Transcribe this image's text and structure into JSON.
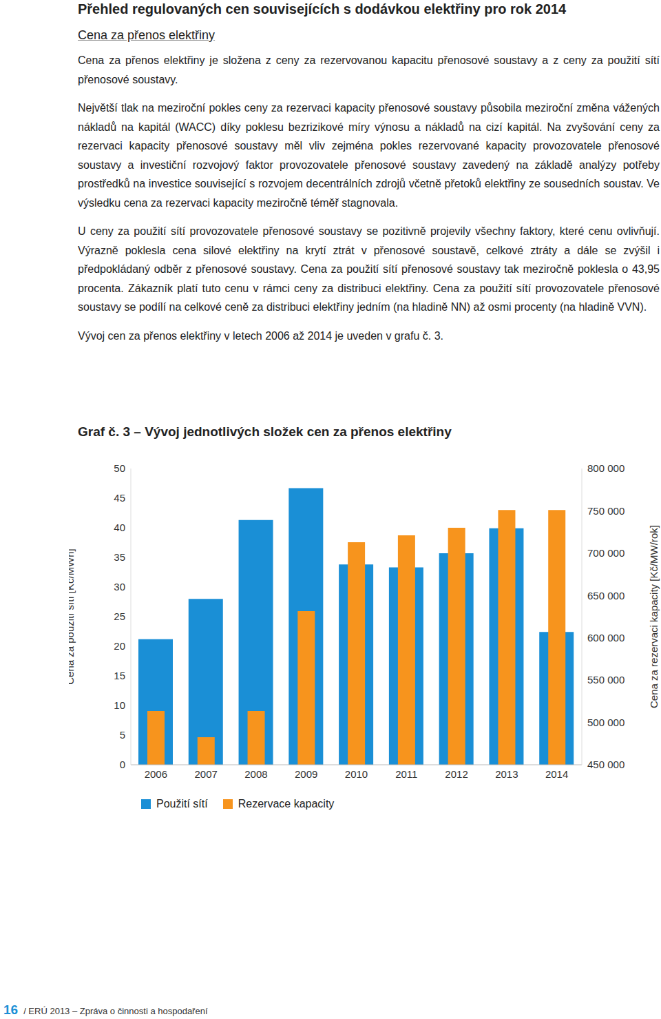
{
  "header": {
    "title": "Přehled regulovaných cen souvisejících s dodávkou elektřiny pro rok 2014",
    "subtitle": "Cena za přenos elektřiny"
  },
  "paragraphs": [
    "Cena za přenos elektřiny je složena z ceny za rezervovanou kapacitu přenosové soustavy a z ceny za použití sítí přenosové soustavy.",
    "Největší tlak na meziroční pokles ceny za rezervaci kapacity přenosové soustavy působila meziroční změna vážených nákladů na kapitál (WACC) díky poklesu bezrizikové míry výnosu a nákladů na cizí kapitál. Na zvyšování ceny za rezervaci kapacity přenosové soustavy měl vliv zejména pokles rezervované kapacity provozovatele přenosové soustavy a investiční rozvojový faktor provozovatele přenosové soustavy zavedený na základě analýzy potřeby prostředků na investice související s rozvojem decentrálních zdrojů včetně přetoků elektřiny ze sousedních soustav. Ve výsledku cena za rezervaci kapacity meziročně téměř stagnovala.",
    "U ceny za použití sítí provozovatele přenosové soustavy se pozitivně projevily všechny faktory, které cenu ovlivňují. Výrazně poklesla cena silové elektřiny na krytí ztrát v přenosové soustavě, celkové ztráty a dále se zvýšil i předpokládaný odběr z přenosové soustavy. Cena za použití sítí přenosové soustavy tak meziročně poklesla o 43,95 procenta. Zákazník platí tuto cenu v rámci ceny za distribuci elektřiny. Cena za použití sítí provozovatele přenosové soustavy se podílí na celkové ceně za distribuci elektřiny jedním (na hladině NN) až osmi procenty (na hladině VVN).",
    "Vývoj cen za přenos elektřiny v letech 2006 až 2014 je uveden v grafu č. 3."
  ],
  "chart_data": {
    "type": "bar",
    "title": "Graf č. 3 – Vývoj jednotlivých složek cen za přenos elektřiny",
    "categories": [
      "2006",
      "2007",
      "2008",
      "2009",
      "2010",
      "2011",
      "2012",
      "2013",
      "2014"
    ],
    "series": [
      {
        "name": "Použití sítí",
        "color": "#1a8fd6",
        "values": [
          21.2,
          28.0,
          41.3,
          46.7,
          33.8,
          33.3,
          35.7,
          39.9,
          22.4
        ]
      },
      {
        "name": "Rezervace kapacity",
        "color": "#f7941d",
        "axis": "y2",
        "values": [
          513500,
          482600,
          513500,
          631500,
          713000,
          721000,
          730000,
          751000,
          751000
        ]
      }
    ],
    "y_label": "Cena za použití sítí [Kč/MWh]",
    "y2_label": "Cena za rezervaci kapacity [Kč/MW/rok]",
    "ylim": [
      0,
      50
    ],
    "yticks": [
      0,
      5,
      10,
      15,
      20,
      25,
      30,
      35,
      40,
      45,
      50
    ],
    "y2lim": [
      450000,
      800000
    ],
    "y2ticks": [
      {
        "value": 450000,
        "label": "450 000"
      },
      {
        "value": 500000,
        "label": "500 000"
      },
      {
        "value": 550000,
        "label": "550 000"
      },
      {
        "value": 600000,
        "label": "600 000"
      },
      {
        "value": 650000,
        "label": "650 000"
      },
      {
        "value": 700000,
        "label": "700 000"
      },
      {
        "value": 750000,
        "label": "750 000"
      },
      {
        "value": 800000,
        "label": "800 000"
      }
    ],
    "grid": false,
    "legend": "bottom"
  },
  "footer": {
    "page": "16",
    "text": "/ ERÚ 2013 – Zpráva o činnosti a hospodaření"
  }
}
